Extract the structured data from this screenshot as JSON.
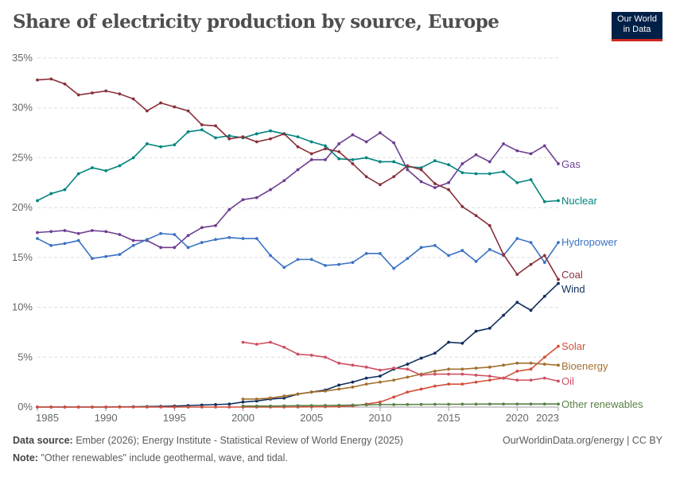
{
  "title": "Share of electricity production by source, Europe",
  "logo": {
    "line1": "Our World",
    "line2": "in Data",
    "bg": "#002147",
    "accent": "#ce261e"
  },
  "footer": {
    "source_label": "Data source:",
    "source_text": "Ember (2026); Energy Institute - Statistical Review of World Energy (2025)",
    "url_license": "OurWorldinData.org/energy | CC BY",
    "note_label": "Note:",
    "note_text": "\"Other renewables\" include geothermal, wave, and tidal."
  },
  "chart_data": {
    "type": "line",
    "title": "Share of electricity production by source, Europe",
    "xlim": [
      1985,
      2023
    ],
    "ylim": [
      0,
      35
    ],
    "grid": true,
    "legend": "right (inline labels at line ends)",
    "x_ticks": [
      "1985",
      "1990",
      "1995",
      "2000",
      "2005",
      "2010",
      "2015",
      "2020",
      "2023"
    ],
    "x_tick_values": [
      1985,
      1990,
      1995,
      2000,
      2005,
      2010,
      2015,
      2020,
      2023
    ],
    "y_ticks": [
      "0%",
      "5%",
      "10%",
      "15%",
      "20%",
      "25%",
      "30%",
      "35%"
    ],
    "y_tick_values": [
      0,
      5,
      10,
      15,
      20,
      25,
      30,
      35
    ],
    "series": [
      {
        "name": "Gas",
        "color": "#6d3e91",
        "start": 1985,
        "values": [
          17.5,
          17.6,
          17.7,
          17.4,
          17.7,
          17.6,
          17.3,
          16.7,
          16.7,
          16.0,
          16.0,
          17.2,
          18.0,
          18.2,
          19.8,
          20.8,
          21.0,
          21.8,
          22.7,
          23.8,
          24.8,
          24.8,
          26.4,
          27.3,
          26.6,
          27.5,
          26.5,
          23.8,
          22.6,
          22.0,
          22.5,
          24.4,
          25.3,
          24.6,
          26.4,
          25.7,
          25.4,
          26.2,
          24.4
        ]
      },
      {
        "name": "Nuclear",
        "color": "#00847e",
        "start": 1985,
        "values": [
          20.7,
          21.4,
          21.8,
          23.4,
          24.0,
          23.7,
          24.2,
          25.0,
          26.4,
          26.1,
          26.3,
          27.6,
          27.8,
          27.0,
          27.2,
          27.0,
          27.4,
          27.7,
          27.4,
          27.1,
          26.6,
          26.2,
          24.9,
          24.8,
          25.0,
          24.6,
          24.6,
          24.1,
          24.0,
          24.7,
          24.3,
          23.5,
          23.4,
          23.4,
          23.6,
          22.5,
          22.8,
          20.6,
          20.7
        ]
      },
      {
        "name": "Hydropower",
        "color": "#3a72c4",
        "start": 1985,
        "values": [
          16.9,
          16.2,
          16.4,
          16.7,
          14.9,
          15.1,
          15.3,
          16.2,
          16.8,
          17.4,
          17.3,
          16.0,
          16.5,
          16.8,
          17.0,
          16.9,
          16.9,
          15.2,
          14.0,
          14.8,
          14.8,
          14.2,
          14.3,
          14.5,
          15.4,
          15.4,
          13.9,
          14.9,
          16.0,
          16.2,
          15.2,
          15.7,
          14.6,
          15.8,
          15.2,
          16.9,
          16.5,
          14.5,
          16.5
        ]
      },
      {
        "name": "Coal",
        "color": "#883039",
        "start": 1985,
        "values": [
          32.8,
          32.9,
          32.4,
          31.3,
          31.5,
          31.7,
          31.4,
          30.9,
          29.7,
          30.5,
          30.1,
          29.7,
          28.3,
          28.2,
          26.9,
          27.1,
          26.6,
          26.9,
          27.4,
          26.1,
          25.4,
          25.9,
          25.6,
          24.4,
          23.1,
          22.3,
          23.1,
          24.2,
          23.8,
          22.4,
          21.8,
          20.1,
          19.2,
          18.2,
          15.3,
          13.3,
          14.3,
          15.2,
          12.8
        ]
      },
      {
        "name": "Wind",
        "color": "#0f2e5c",
        "start": 1985,
        "values": [
          0,
          0,
          0,
          0,
          0,
          0,
          0.02,
          0.03,
          0.05,
          0.07,
          0.1,
          0.15,
          0.2,
          0.25,
          0.3,
          0.5,
          0.6,
          0.8,
          0.9,
          1.3,
          1.5,
          1.7,
          2.2,
          2.5,
          2.9,
          3.1,
          3.8,
          4.3,
          4.9,
          5.4,
          6.5,
          6.4,
          7.6,
          7.9,
          9.2,
          10.5,
          9.7,
          11.1,
          12.4
        ]
      },
      {
        "name": "Solar",
        "color": "#d2503c",
        "start": 1985,
        "values": [
          0,
          0,
          0,
          0,
          0,
          0,
          0,
          0,
          0,
          0,
          0,
          0,
          0,
          0,
          0,
          0,
          0,
          0,
          0,
          0.01,
          0.02,
          0.03,
          0.05,
          0.1,
          0.3,
          0.5,
          1.0,
          1.5,
          1.8,
          2.1,
          2.3,
          2.3,
          2.5,
          2.7,
          2.9,
          3.6,
          3.8,
          5.0,
          6.1
        ]
      },
      {
        "name": "Bioenergy",
        "color": "#a2702f",
        "start": 2000,
        "values": [
          0.8,
          0.8,
          0.9,
          1.1,
          1.3,
          1.5,
          1.6,
          1.8,
          2.0,
          2.3,
          2.5,
          2.7,
          3.0,
          3.3,
          3.6,
          3.8,
          3.8,
          3.9,
          4.0,
          4.2,
          4.4,
          4.4,
          4.3,
          4.2
        ]
      },
      {
        "name": "Oil",
        "color": "#cf4f62",
        "start": 2000,
        "values": [
          6.5,
          6.3,
          6.5,
          6.0,
          5.3,
          5.2,
          5.0,
          4.4,
          4.2,
          4.0,
          3.7,
          3.9,
          3.8,
          3.2,
          3.3,
          3.3,
          3.3,
          3.2,
          3.1,
          2.9,
          2.7,
          2.7,
          2.9,
          2.6
        ]
      },
      {
        "name": "Other renewables",
        "color": "#578145",
        "start": 2000,
        "values": [
          0.1,
          0.1,
          0.1,
          0.12,
          0.14,
          0.15,
          0.16,
          0.18,
          0.2,
          0.22,
          0.25,
          0.25,
          0.26,
          0.27,
          0.28,
          0.28,
          0.29,
          0.29,
          0.3,
          0.3,
          0.3,
          0.3,
          0.3,
          0.3
        ]
      }
    ]
  }
}
